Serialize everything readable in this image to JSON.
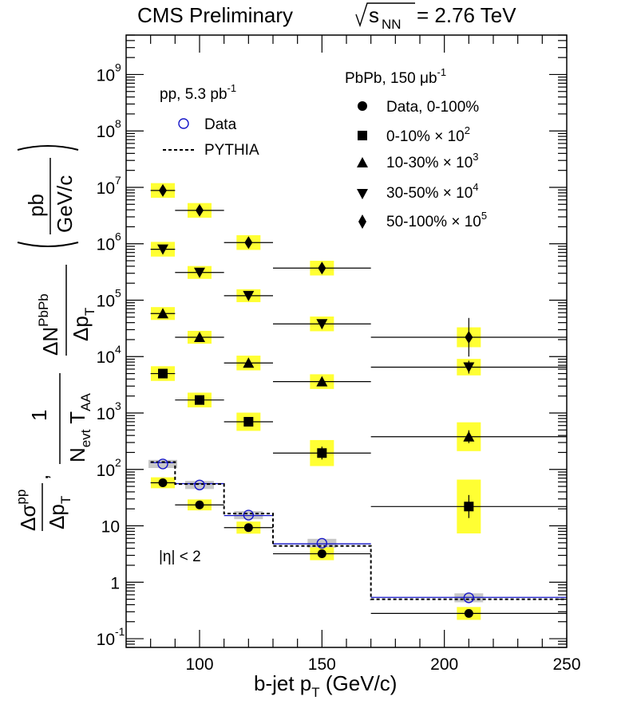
{
  "chart_data": {
    "type": "scatter",
    "title": "CMS Preliminary",
    "energy_label": {
      "s": "s",
      "sub": "NN",
      "value": "= 2.76 TeV"
    },
    "xlabel": {
      "main": "b-jet p",
      "sub": "T",
      "unit": " (GeV/c)"
    },
    "xlim": [
      70,
      250
    ],
    "ylim": [
      0.07,
      5000000000
    ],
    "y_scale": "log",
    "x_ticks": [
      {
        "value": 100,
        "label": "100"
      },
      {
        "value": 150,
        "label": "150"
      },
      {
        "value": 200,
        "label": "200"
      },
      {
        "value": 250,
        "label": "250"
      }
    ],
    "y_ticks": [
      {
        "value": 0.1,
        "base": "10",
        "exp": "-1"
      },
      {
        "value": 1,
        "base": "1",
        "exp": ""
      },
      {
        "value": 10,
        "base": "10",
        "exp": ""
      },
      {
        "value": 100,
        "base": "10",
        "exp": "2"
      },
      {
        "value": 1000,
        "base": "10",
        "exp": "3"
      },
      {
        "value": 10000,
        "base": "10",
        "exp": "4"
      },
      {
        "value": 100000,
        "base": "10",
        "exp": "5"
      },
      {
        "value": 1000000,
        "base": "10",
        "exp": "6"
      },
      {
        "value": 10000000,
        "base": "10",
        "exp": "7"
      },
      {
        "value": 100000000,
        "base": "10",
        "exp": "8"
      },
      {
        "value": 1000000000,
        "base": "10",
        "exp": "9"
      }
    ],
    "bins": [
      [
        80,
        90
      ],
      [
        90,
        110
      ],
      [
        110,
        130
      ],
      [
        130,
        170
      ],
      [
        170,
        250
      ]
    ],
    "x_centers": [
      85,
      100,
      120,
      150,
      210
    ],
    "series": [
      {
        "name": "pp Data",
        "marker": "open-circle",
        "color": "#1515c8",
        "values": [
          125,
          53,
          15.5,
          4.9,
          0.53
        ],
        "sys_rel": [
          0.18,
          0.18,
          0.18,
          0.2,
          0.2
        ],
        "err_rel": [
          0,
          0,
          0,
          0,
          0.1
        ]
      },
      {
        "name": "Data, 0-100%",
        "marker": "circle",
        "color": "#000000",
        "values": [
          58,
          23.5,
          9.3,
          3.2,
          0.28
        ],
        "sys_rel": [
          0.25,
          0.25,
          0.28,
          0.3,
          0.3
        ],
        "err_rel": [
          0,
          0,
          0,
          0.1,
          0.1
        ]
      },
      {
        "name": "0-10% x 10^2",
        "marker": "square",
        "color": "#000000",
        "values": [
          5000,
          1700,
          700,
          195,
          22
        ],
        "sys_rel": [
          0.35,
          0.35,
          0.45,
          0.7,
          2.0
        ],
        "err_rel": [
          0,
          0,
          0,
          0.3,
          0.6
        ]
      },
      {
        "name": "10-30% x 10^3",
        "marker": "triangle-up",
        "color": "#000000",
        "values": [
          58000,
          22000,
          7700,
          3600,
          380
        ],
        "sys_rel": [
          0.3,
          0.3,
          0.35,
          0.35,
          0.8
        ],
        "err_rel": [
          0,
          0,
          0,
          0,
          0.3
        ]
      },
      {
        "name": "30-50% x 10^4",
        "marker": "triangle-down",
        "color": "#000000",
        "values": [
          800000,
          310000,
          120000,
          38000,
          6500
        ],
        "sys_rel": [
          0.35,
          0.3,
          0.3,
          0.35,
          0.4
        ],
        "err_rel": [
          0,
          0,
          0,
          0,
          0.3
        ]
      },
      {
        "name": "50-100% x 10^5",
        "marker": "diamond",
        "color": "#000000",
        "values": [
          8800000,
          3900000,
          1050000,
          370000,
          22000
        ],
        "sys_rel": [
          0.35,
          0.35,
          0.35,
          0.35,
          0.5
        ],
        "err_rel": [
          0,
          0,
          0,
          0,
          1.2
        ]
      }
    ],
    "pythia": {
      "name": "PYTHIA",
      "values": [
        135,
        55,
        16.5,
        4.4,
        0.5
      ]
    },
    "pp_line": {
      "values": [
        132,
        56,
        15.2,
        4.8,
        0.54
      ]
    },
    "legend_pp": {
      "title": "pp, 5.3 pb",
      "title_exp": "-1",
      "entries": [
        "Data",
        "PYTHIA"
      ]
    },
    "legend_pbpb": {
      "title": "PbPb, 150 μb",
      "title_exp": "-1",
      "entries": [
        {
          "text": "Data, 0-100%",
          "exp": ""
        },
        {
          "text": "0-10% × 10",
          "exp": "2"
        },
        {
          "text": "10-30% × 10",
          "exp": "3"
        },
        {
          "text": "30-50% × 10",
          "exp": "4"
        },
        {
          "text": "50-100% × 10",
          "exp": "5"
        }
      ]
    },
    "annotation": "|η| < 2",
    "ylabel_parts": {
      "sigma_num": "Δσ",
      "sigma_sup": "pp",
      "sigma_den": "Δp",
      "sigma_den_sub": "T",
      "frac_one": "1",
      "nevt": "N",
      "nevt_sub": "evt",
      "taa": "T",
      "taa_sub": "AA",
      "dn_num": "ΔN",
      "dn_sup": "PbPb",
      "dn_den": "Δp",
      "dn_den_sub": "T",
      "unit_num": "pb",
      "unit_den": "GeV/c"
    }
  }
}
